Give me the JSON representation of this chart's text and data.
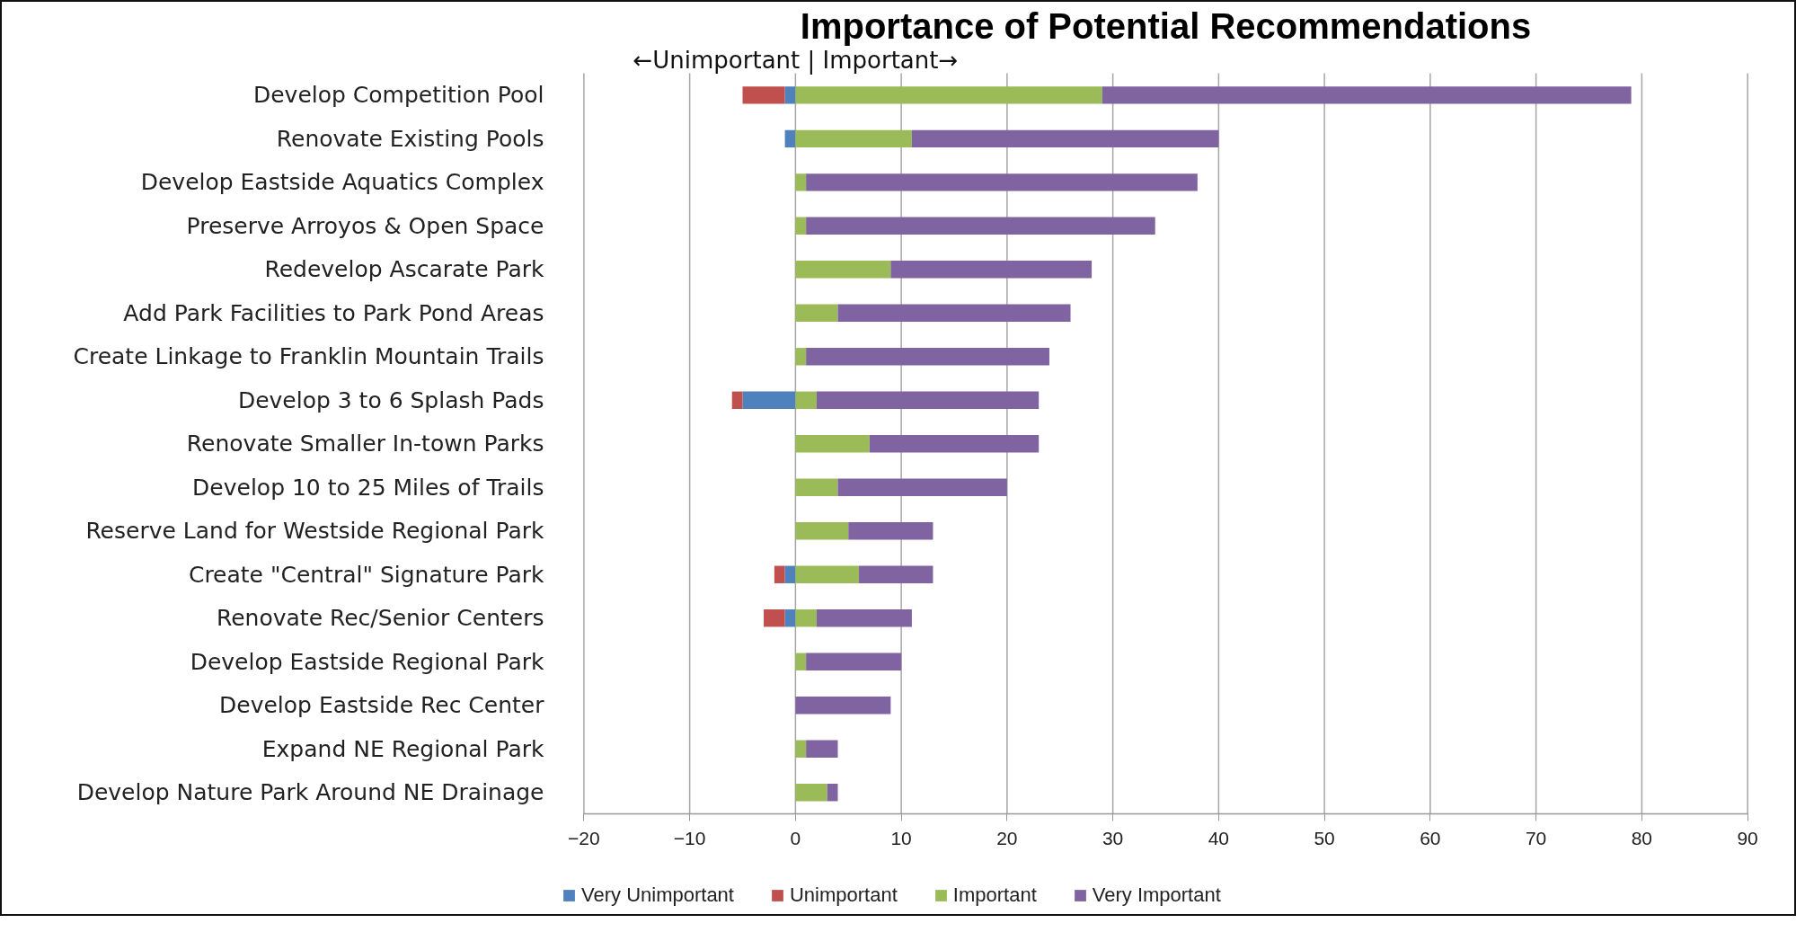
{
  "chart_data": {
    "type": "bar",
    "orientation": "horizontal",
    "stacked": true,
    "title": "Importance of Potential Recommendations",
    "annotations": [
      "←Unimportant | Important→"
    ],
    "categories": [
      "Develop Competition Pool",
      "Renovate Existing Pools",
      "Develop Eastside Aquatics Complex",
      "Preserve Arroyos & Open Space",
      "Redevelop Ascarate Park",
      "Add Park Facilities to Park Pond Areas",
      "Create Linkage to Franklin Mountain Trails",
      "Develop 3 to 6 Splash Pads",
      "Renovate Smaller In-town Parks",
      "Develop 10 to 25 Miles of Trails",
      "Reserve Land for Westside Regional Park",
      "Create \"Central\" Signature Park",
      "Renovate Rec/Senior Centers",
      "Develop Eastside Regional Park",
      "Develop Eastside Rec Center",
      "Expand NE Regional Park",
      "Develop Nature Park Around NE Drainage"
    ],
    "series": [
      {
        "name": "Very Unimportant",
        "color": "#4f81bd",
        "values": [
          -1,
          -1,
          null,
          null,
          null,
          null,
          null,
          -5,
          null,
          null,
          null,
          -1,
          -1,
          null,
          null,
          null,
          null
        ]
      },
      {
        "name": "Unimportant",
        "color": "#c0504d",
        "values": [
          -4,
          null,
          null,
          null,
          null,
          null,
          null,
          -1,
          null,
          null,
          null,
          -1,
          -2,
          null,
          null,
          null,
          null
        ]
      },
      {
        "name": "Important",
        "color": "#9bbb59",
        "values": [
          29,
          11,
          1,
          1,
          9,
          4,
          1,
          2,
          7,
          4,
          5,
          6,
          2,
          1,
          null,
          1,
          3
        ]
      },
      {
        "name": "Very Important",
        "color": "#8064a2",
        "values": [
          50,
          29,
          37,
          33,
          19,
          22,
          23,
          21,
          16,
          16,
          8,
          7,
          9,
          9,
          9,
          3,
          1
        ]
      }
    ],
    "xlim": [
      -20,
      90
    ],
    "xticks": [
      -20,
      -10,
      0,
      10,
      20,
      30,
      40,
      50,
      60,
      70,
      80,
      90
    ],
    "grid": "x",
    "legend": "bottom"
  }
}
